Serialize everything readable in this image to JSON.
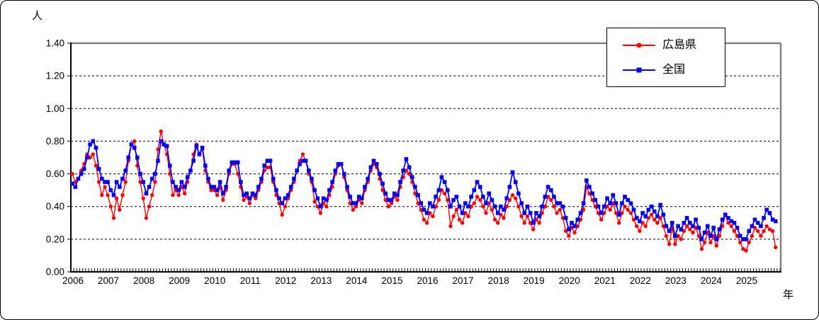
{
  "chart_data": {
    "type": "line",
    "title": "",
    "ylabel": "人",
    "xlabel": "年",
    "ylim": [
      0.0,
      1.4
    ],
    "y_tick_step": 0.2,
    "y_tick_labels": [
      "0.00",
      "0.20",
      "0.40",
      "0.60",
      "0.80",
      "1.00",
      "1.20",
      "1.40"
    ],
    "x_tick_labels": [
      "2006",
      "2007",
      "2008",
      "2009",
      "2010",
      "2011",
      "2012",
      "2013",
      "2014",
      "2015",
      "2016",
      "2017",
      "2018",
      "2019",
      "2020",
      "2021",
      "2022",
      "2023",
      "2024",
      "2025"
    ],
    "points_per_year": 12,
    "grid": "horizontal-dashed",
    "legend_position": "top-right",
    "series": [
      {
        "name": "広島県",
        "color": "#FF0000",
        "marker": "circle",
        "values": [
          0.6,
          0.55,
          0.57,
          0.62,
          0.66,
          0.72,
          0.7,
          0.72,
          0.65,
          0.55,
          0.47,
          0.52,
          0.47,
          0.4,
          0.33,
          0.45,
          0.38,
          0.47,
          0.55,
          0.68,
          0.78,
          0.8,
          0.65,
          0.55,
          0.45,
          0.33,
          0.4,
          0.47,
          0.55,
          0.75,
          0.86,
          0.78,
          0.72,
          0.6,
          0.47,
          0.5,
          0.47,
          0.52,
          0.48,
          0.55,
          0.62,
          0.72,
          0.78,
          0.72,
          0.75,
          0.62,
          0.55,
          0.5,
          0.5,
          0.47,
          0.52,
          0.44,
          0.5,
          0.6,
          0.66,
          0.66,
          0.6,
          0.52,
          0.44,
          0.46,
          0.42,
          0.47,
          0.45,
          0.5,
          0.55,
          0.62,
          0.64,
          0.64,
          0.55,
          0.47,
          0.42,
          0.35,
          0.4,
          0.45,
          0.5,
          0.55,
          0.62,
          0.68,
          0.72,
          0.68,
          0.6,
          0.55,
          0.43,
          0.4,
          0.36,
          0.42,
          0.4,
          0.47,
          0.52,
          0.6,
          0.65,
          0.66,
          0.58,
          0.5,
          0.42,
          0.38,
          0.4,
          0.44,
          0.42,
          0.5,
          0.55,
          0.62,
          0.66,
          0.64,
          0.57,
          0.5,
          0.44,
          0.4,
          0.42,
          0.46,
          0.44,
          0.52,
          0.58,
          0.62,
          0.6,
          0.55,
          0.48,
          0.42,
          0.38,
          0.32,
          0.3,
          0.36,
          0.34,
          0.4,
          0.44,
          0.5,
          0.48,
          0.44,
          0.28,
          0.34,
          0.38,
          0.32,
          0.3,
          0.36,
          0.34,
          0.4,
          0.42,
          0.46,
          0.44,
          0.4,
          0.36,
          0.42,
          0.38,
          0.32,
          0.3,
          0.35,
          0.33,
          0.4,
          0.44,
          0.47,
          0.45,
          0.4,
          0.34,
          0.3,
          0.34,
          0.3,
          0.26,
          0.32,
          0.3,
          0.36,
          0.4,
          0.46,
          0.44,
          0.4,
          0.36,
          0.38,
          0.33,
          0.25,
          0.22,
          0.27,
          0.24,
          0.28,
          0.32,
          0.38,
          0.52,
          0.48,
          0.44,
          0.4,
          0.36,
          0.32,
          0.36,
          0.4,
          0.38,
          0.42,
          0.36,
          0.3,
          0.36,
          0.4,
          0.38,
          0.36,
          0.32,
          0.28,
          0.25,
          0.3,
          0.28,
          0.33,
          0.35,
          0.32,
          0.3,
          0.33,
          0.28,
          0.22,
          0.17,
          0.27,
          0.17,
          0.22,
          0.2,
          0.25,
          0.28,
          0.26,
          0.24,
          0.27,
          0.22,
          0.14,
          0.18,
          0.24,
          0.18,
          0.22,
          0.16,
          0.22,
          0.28,
          0.35,
          0.3,
          0.28,
          0.25,
          0.22,
          0.18,
          0.14,
          0.13,
          0.18,
          0.22,
          0.27,
          0.25,
          0.22,
          0.25,
          0.28,
          0.26,
          0.25,
          0.15
        ]
      },
      {
        "name": "全国",
        "color": "#0000FF",
        "marker": "square",
        "values": [
          0.54,
          0.52,
          0.57,
          0.6,
          0.63,
          0.7,
          0.78,
          0.8,
          0.76,
          0.63,
          0.57,
          0.55,
          0.55,
          0.5,
          0.47,
          0.55,
          0.52,
          0.57,
          0.62,
          0.7,
          0.78,
          0.76,
          0.7,
          0.6,
          0.55,
          0.48,
          0.52,
          0.57,
          0.6,
          0.68,
          0.8,
          0.78,
          0.77,
          0.65,
          0.55,
          0.52,
          0.5,
          0.55,
          0.52,
          0.58,
          0.62,
          0.68,
          0.77,
          0.72,
          0.76,
          0.65,
          0.57,
          0.52,
          0.52,
          0.5,
          0.55,
          0.48,
          0.52,
          0.62,
          0.67,
          0.67,
          0.67,
          0.55,
          0.47,
          0.48,
          0.45,
          0.48,
          0.47,
          0.52,
          0.57,
          0.65,
          0.68,
          0.68,
          0.57,
          0.5,
          0.45,
          0.42,
          0.45,
          0.47,
          0.52,
          0.57,
          0.62,
          0.66,
          0.68,
          0.68,
          0.62,
          0.57,
          0.5,
          0.45,
          0.4,
          0.45,
          0.44,
          0.5,
          0.55,
          0.62,
          0.66,
          0.66,
          0.6,
          0.52,
          0.46,
          0.42,
          0.42,
          0.46,
          0.45,
          0.52,
          0.57,
          0.64,
          0.68,
          0.66,
          0.6,
          0.54,
          0.48,
          0.44,
          0.44,
          0.48,
          0.47,
          0.55,
          0.62,
          0.69,
          0.64,
          0.58,
          0.52,
          0.47,
          0.42,
          0.38,
          0.36,
          0.42,
          0.4,
          0.46,
          0.5,
          0.58,
          0.55,
          0.5,
          0.4,
          0.44,
          0.46,
          0.4,
          0.36,
          0.42,
          0.4,
          0.46,
          0.5,
          0.55,
          0.52,
          0.46,
          0.42,
          0.48,
          0.44,
          0.4,
          0.36,
          0.4,
          0.38,
          0.45,
          0.52,
          0.61,
          0.55,
          0.48,
          0.42,
          0.36,
          0.4,
          0.36,
          0.3,
          0.36,
          0.34,
          0.4,
          0.46,
          0.52,
          0.5,
          0.46,
          0.42,
          0.42,
          0.4,
          0.33,
          0.26,
          0.3,
          0.28,
          0.32,
          0.36,
          0.42,
          0.56,
          0.52,
          0.48,
          0.44,
          0.4,
          0.36,
          0.4,
          0.45,
          0.42,
          0.47,
          0.42,
          0.35,
          0.42,
          0.46,
          0.44,
          0.42,
          0.38,
          0.33,
          0.31,
          0.36,
          0.34,
          0.38,
          0.4,
          0.37,
          0.34,
          0.41,
          0.35,
          0.28,
          0.25,
          0.3,
          0.22,
          0.28,
          0.26,
          0.3,
          0.33,
          0.3,
          0.28,
          0.32,
          0.27,
          0.2,
          0.24,
          0.28,
          0.22,
          0.27,
          0.2,
          0.26,
          0.32,
          0.35,
          0.33,
          0.31,
          0.3,
          0.27,
          0.22,
          0.2,
          0.2,
          0.25,
          0.28,
          0.32,
          0.3,
          0.28,
          0.33,
          0.38,
          0.36,
          0.32,
          0.31
        ]
      }
    ],
    "colors": {
      "grid": "#000000",
      "axis": "#000000",
      "plot_border_gray": "#808080",
      "series_hiroshima": "#FF0000",
      "series_zenkoku": "#0000FF"
    }
  }
}
